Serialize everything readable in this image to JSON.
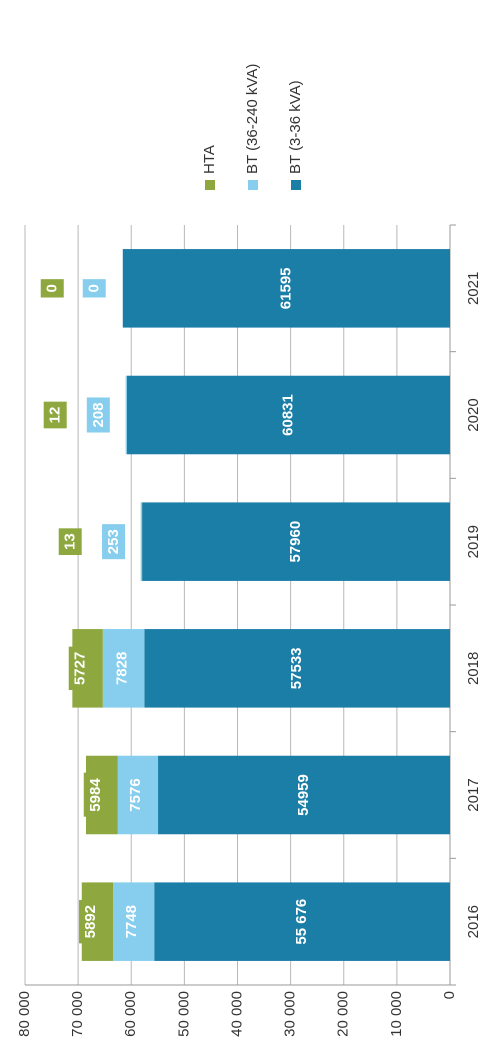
{
  "chart_data": {
    "type": "stacked_bar",
    "categories": [
      "2016",
      "2017",
      "2018",
      "2019",
      "2020",
      "2021"
    ],
    "series": [
      {
        "name": "BT (3-36 kVA)",
        "color": "#1b7ea6",
        "values": [
          55676,
          54959,
          57533,
          57960,
          60831,
          61595
        ],
        "value_labels": [
          "55 676",
          "54959",
          "57533",
          "57960",
          "60831",
          "61595"
        ]
      },
      {
        "name": "BT (36-240 kVA)",
        "color": "#86cdee",
        "values": [
          7748,
          7576,
          7828,
          253,
          208,
          0
        ]
      },
      {
        "name": "HTA",
        "color": "#8ea83f",
        "values": [
          5892,
          5984,
          5727,
          13,
          12,
          0
        ]
      }
    ],
    "ylim": [
      0,
      80000
    ],
    "yticks": [
      0,
      {
        "value": 10000,
        "label": "10 000"
      },
      {
        "value": 20000,
        "label": "20 000"
      },
      {
        "value": 30000,
        "label": "30 000"
      },
      {
        "value": 40000,
        "label": "40 000"
      },
      {
        "value": 50000,
        "label": "50 000"
      },
      {
        "value": 60000,
        "label": "60 000"
      },
      {
        "value": 70000,
        "label": "70 000"
      },
      {
        "value": 80000,
        "label": "80 000"
      }
    ],
    "grid": true,
    "legend": "right"
  }
}
